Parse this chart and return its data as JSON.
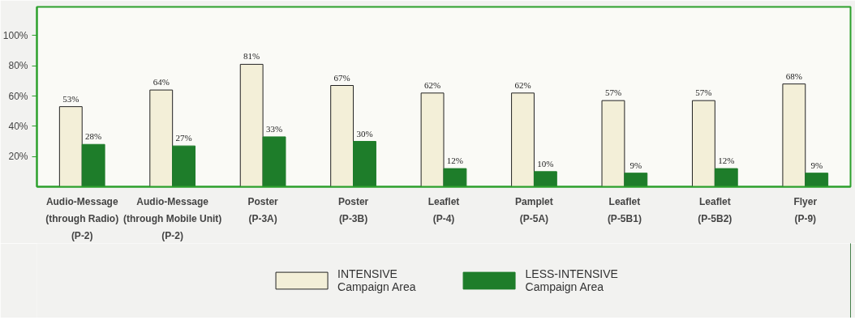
{
  "chart_data": {
    "type": "bar",
    "categories": [
      "Audio-Message\n(through Radio)\n(P-2)",
      "Audio-Message\n(through Mobile Unit)\n(P-2)",
      "Poster\n(P-3A)",
      "Poster\n(P-3B)",
      "Leaflet\n(P-4)",
      "Pamplet\n(P-5A)",
      "Leaflet\n(P-5B1)",
      "Leaflet\n(P-5B2)",
      "Flyer\n(P-9)"
    ],
    "series": [
      {
        "name": "INTENSIVE\nCampaign Area",
        "color": "#f3efd8",
        "values": [
          53,
          64,
          81,
          67,
          62,
          62,
          57,
          57,
          68
        ],
        "value_labels": [
          "53%",
          "64%",
          "81%",
          "67%",
          "62%",
          "62%",
          "57%",
          "57%",
          "68%"
        ]
      },
      {
        "name": "LESS-INTENSIVE\nCampaign Area",
        "color": "#1e7d2a",
        "values": [
          28,
          27,
          33,
          30,
          12,
          10,
          9,
          12,
          9
        ],
        "value_labels": [
          "28%",
          "27%",
          "33%",
          "30%",
          "12%",
          "10%",
          "9%",
          "12%",
          "9%"
        ]
      }
    ],
    "ylim": [
      0,
      119
    ],
    "yticks": [
      {
        "value": 20,
        "label": "20%"
      },
      {
        "value": 40,
        "label": "40%"
      },
      {
        "value": 60,
        "label": "60%"
      },
      {
        "value": 80,
        "label": "80%"
      },
      {
        "value": 100,
        "label": "100%"
      }
    ],
    "data_labels": true,
    "grid": false,
    "legend": "bottom"
  }
}
